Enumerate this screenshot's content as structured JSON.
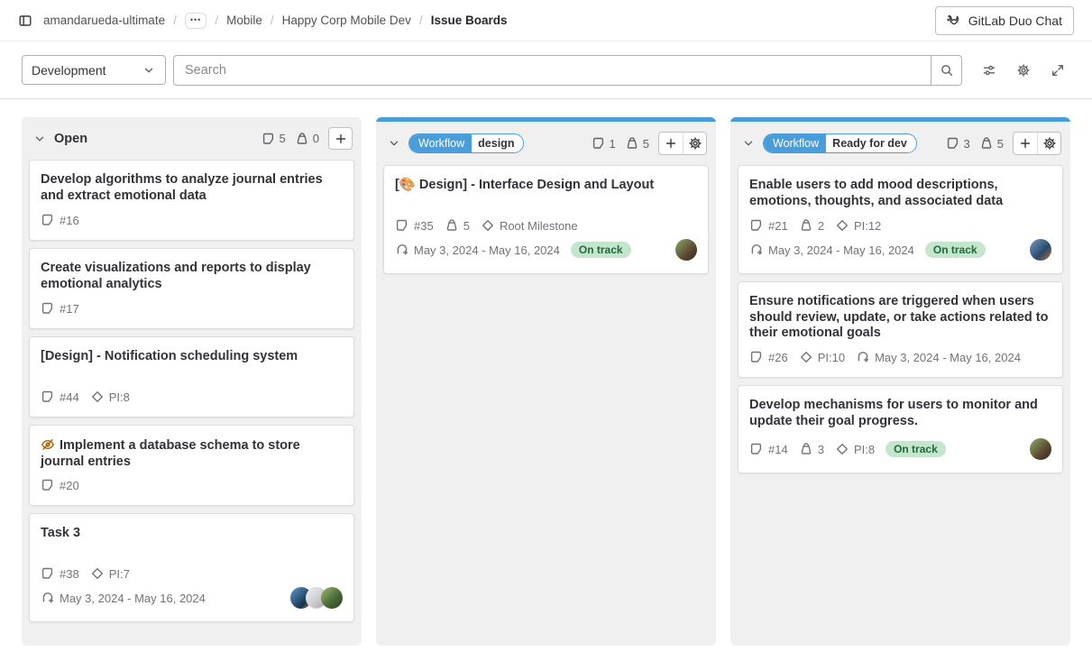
{
  "colors": {
    "accent_blue": "#4a9ddb",
    "badge_success_bg": "#c3e6cd",
    "badge_success_text": "#24663b",
    "hidden_icon_orange": "#ab6100"
  },
  "breadcrumb": {
    "separator": "/",
    "ellipsis": "•••",
    "items": [
      {
        "label": "amandarueda-ultimate",
        "current": false
      },
      {
        "label": "Mobile",
        "current": false
      },
      {
        "label": "Happy Corp Mobile Dev",
        "current": false
      },
      {
        "label": "Issue Boards",
        "current": true
      }
    ]
  },
  "duo_chat": {
    "label": "GitLab Duo Chat",
    "icon": "duo-tanuki-icon"
  },
  "toolbar": {
    "board_select_value": "Development",
    "search_placeholder": "Search",
    "icons": [
      "search-icon",
      "preferences-sliders-icon",
      "gear-icon",
      "expand-icon"
    ]
  },
  "board": {
    "columns": [
      {
        "kind": "list",
        "title": "Open",
        "accent": false,
        "issue_count": "5",
        "weight_count": "0",
        "has_settings": false,
        "cards": [
          {
            "title": "Develop algorithms to analyze journal entries and extract emotional data",
            "meta": [
              [
                {
                  "icon": "issue",
                  "text": "#16"
                }
              ]
            ]
          },
          {
            "title": "Create visualizations and reports to display emotional analytics",
            "meta": [
              [
                {
                  "icon": "issue",
                  "text": "#17"
                }
              ]
            ]
          },
          {
            "title": "[Design] - Notification scheduling system",
            "meta": [
              [
                {
                  "icon": "issue",
                  "text": "#44"
                },
                {
                  "icon": "milestone",
                  "text": "PI:8"
                }
              ]
            ]
          },
          {
            "title": "Implement a database schema to store journal entries",
            "hidden": true,
            "meta": [
              [
                {
                  "icon": "issue",
                  "text": "#20"
                }
              ]
            ]
          },
          {
            "title": "Task 3",
            "meta": [
              [
                {
                  "icon": "issue",
                  "text": "#38"
                },
                {
                  "icon": "milestone",
                  "text": "PI:7"
                }
              ],
              [
                {
                  "icon": "iteration",
                  "text": "May 3, 2024 - May 16, 2024"
                }
              ]
            ],
            "avatars": [
              "blue",
              "sketch",
              "green"
            ]
          }
        ]
      },
      {
        "kind": "scoped",
        "scope": "Workflow",
        "value": "design",
        "accent": true,
        "issue_count": "1",
        "weight_count": "5",
        "has_settings": true,
        "cards": [
          {
            "title": "[🎨 Design] - Interface Design and Layout",
            "meta": [
              [
                {
                  "icon": "issue",
                  "text": "#35"
                },
                {
                  "icon": "weight",
                  "text": "5"
                },
                {
                  "icon": "milestone",
                  "text": "Root Milestone"
                }
              ],
              [
                {
                  "icon": "iteration",
                  "text": "May 3, 2024 - May 16, 2024"
                },
                {
                  "badge": "On track"
                }
              ]
            ],
            "avatars": [
              "portrait"
            ]
          }
        ]
      },
      {
        "kind": "scoped",
        "scope": "Workflow",
        "value": "Ready for dev",
        "accent": true,
        "issue_count": "3",
        "weight_count": "5",
        "has_settings": true,
        "cards": [
          {
            "title": "Enable users to add mood descriptions, emotions, thoughts, and associated data",
            "meta": [
              [
                {
                  "icon": "issue",
                  "text": "#21"
                },
                {
                  "icon": "weight",
                  "text": "2"
                },
                {
                  "icon": "milestone",
                  "text": "PI:12"
                }
              ],
              [
                {
                  "icon": "iteration",
                  "text": "May 3, 2024 - May 16, 2024"
                },
                {
                  "badge": "On track"
                }
              ]
            ],
            "avatars": [
              "man-computer"
            ]
          },
          {
            "title": "Ensure notifications are triggered when users should review, update, or take actions related to their emotional goals",
            "meta": [
              [
                {
                  "icon": "issue",
                  "text": "#26"
                },
                {
                  "icon": "milestone",
                  "text": "PI:10"
                },
                {
                  "icon": "iteration",
                  "text": "May 3, 2024 - May 16, 2024"
                }
              ]
            ]
          },
          {
            "title": "Develop mechanisms for users to monitor and update their goal progress.",
            "meta": [
              [
                {
                  "icon": "issue",
                  "text": "#14"
                },
                {
                  "icon": "weight",
                  "text": "3"
                },
                {
                  "icon": "milestone",
                  "text": "PI:8"
                },
                {
                  "badge": "On track"
                }
              ]
            ],
            "avatars": [
              "portrait"
            ]
          }
        ]
      }
    ]
  }
}
